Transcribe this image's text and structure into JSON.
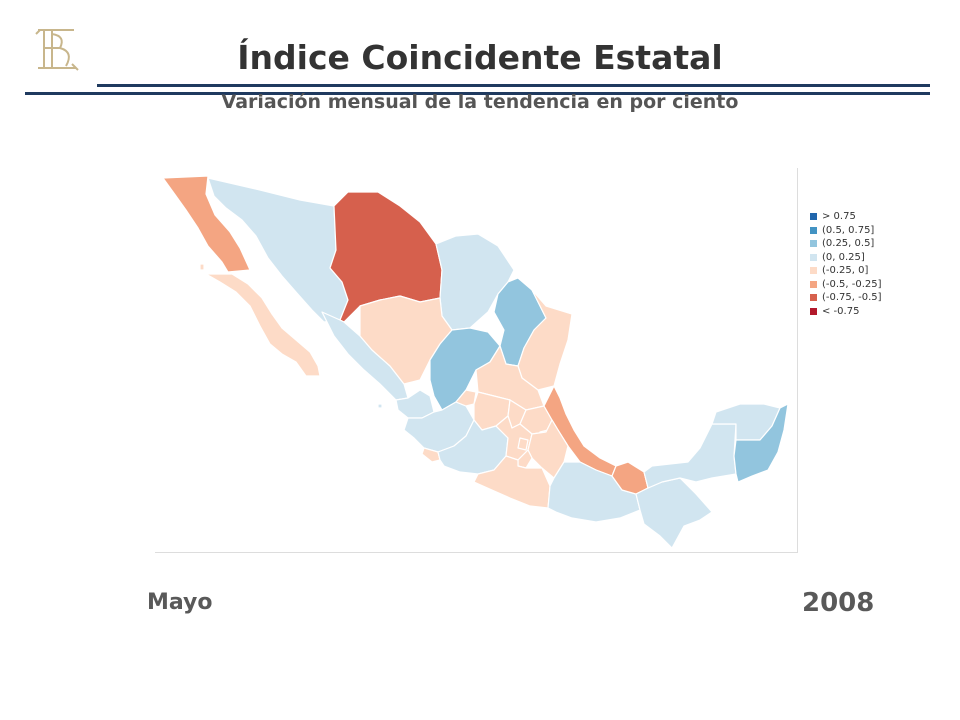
{
  "header": {
    "title": "Índice Coincidente Estatal",
    "subtitle": "Variación mensual de la tendencia en por ciento"
  },
  "colors": {
    "rule": "#1f3a5f",
    "gt_075": "#2166ac",
    "c_050_075": "#4393c3",
    "c_025_050": "#92c5de",
    "c_0_025": "#d1e5f0",
    "c_m025_0": "#fddbc7",
    "c_m050_m025": "#f4a582",
    "c_m075_m050": "#d6604d",
    "lt_m075": "#b2182b"
  },
  "legend": {
    "items": [
      {
        "label": "> 0.75",
        "color": "#2166ac"
      },
      {
        "label": "(0.5, 0.75]",
        "color": "#4393c3"
      },
      {
        "label": "(0.25, 0.5]",
        "color": "#92c5de"
      },
      {
        "label": "(0, 0.25]",
        "color": "#d1e5f0"
      },
      {
        "label": "(-0.25, 0]",
        "color": "#fddbc7"
      },
      {
        "label": "(-0.5, -0.25]",
        "color": "#f4a582"
      },
      {
        "label": "(-0.75, -0.5]",
        "color": "#d6604d"
      },
      {
        "label": "< -0.75",
        "color": "#b2182b"
      }
    ]
  },
  "footer": {
    "month": "Mayo",
    "year": "2008"
  }
}
